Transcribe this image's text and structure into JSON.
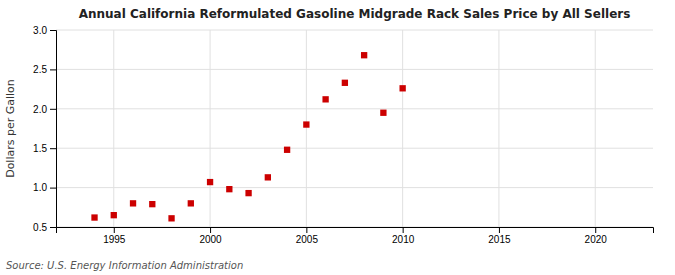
{
  "chart_data": {
    "type": "scatter",
    "title": "Annual California Reformulated Gasoline Midgrade Rack Sales Price by All Sellers",
    "y_label": "Dollars per Gallon",
    "annotations": [
      "Source: U.S. Energy Information Administration"
    ],
    "x": [
      1994,
      1995,
      1996,
      1997,
      1998,
      1999,
      2000,
      2001,
      2002,
      2003,
      2004,
      2005,
      2006,
      2007,
      2008,
      2009,
      2010
    ],
    "values": [
      0.62,
      0.65,
      0.8,
      0.79,
      0.61,
      0.8,
      1.07,
      0.98,
      0.93,
      1.13,
      1.48,
      1.8,
      2.12,
      2.33,
      2.68,
      1.95,
      2.26
    ],
    "color": "#cc0000",
    "marker": "square",
    "xlim": [
      1992,
      2023
    ],
    "ylim": [
      0.5,
      3.0
    ],
    "xticks": [
      1995,
      2000,
      2005,
      2010,
      2015,
      2020
    ],
    "yticks": [
      0.5,
      {
        "value": 1.0,
        "label": "1.0"
      },
      1.5,
      {
        "value": 2.0,
        "label": "2.0"
      },
      2.5,
      {
        "value": 3.0,
        "label": "3.0"
      }
    ],
    "grid": true
  }
}
